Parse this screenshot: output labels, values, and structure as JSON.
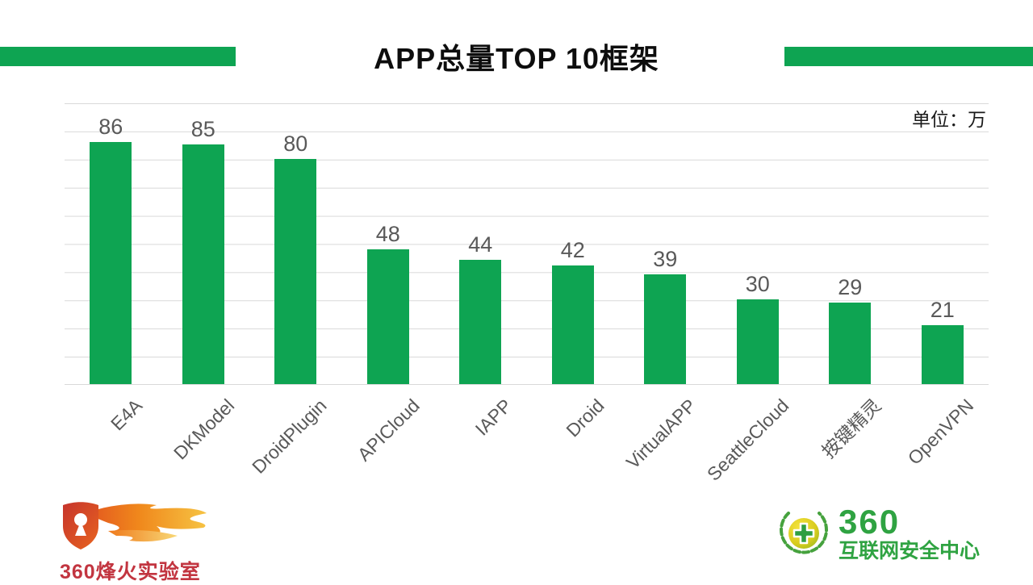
{
  "header": {
    "title": "APP总量TOP 10框架",
    "accent_color": "#0ea452"
  },
  "chart_data": {
    "type": "bar",
    "title": "APP总量TOP 10框架",
    "unit_label": "单位：万",
    "categories": [
      "E4A",
      "DKModel",
      "DroidPlugin",
      "APICloud",
      "IAPP",
      "Droid",
      "VirtualAPP",
      "SeattleCloud",
      "按键精灵",
      "OpenVPN"
    ],
    "values": [
      86,
      85,
      80,
      48,
      44,
      42,
      39,
      30,
      29,
      21
    ],
    "xlabel": "",
    "ylabel": "",
    "ylim": [
      0,
      100
    ],
    "gridline_step": 10,
    "grid": true,
    "legend_position": "none",
    "bar_color": "#0ea452",
    "value_label_color": "#595959",
    "gridline_color": "#d9d9d9"
  },
  "footer": {
    "left_logo": {
      "icon": "flame-shield-icon",
      "text": "360烽火实验室",
      "color": "#c23540"
    },
    "right_logo": {
      "icon": "wreath-globe-cross-icon",
      "brand": "360",
      "text": "互联网安全中心",
      "color": "#2fa342"
    }
  }
}
